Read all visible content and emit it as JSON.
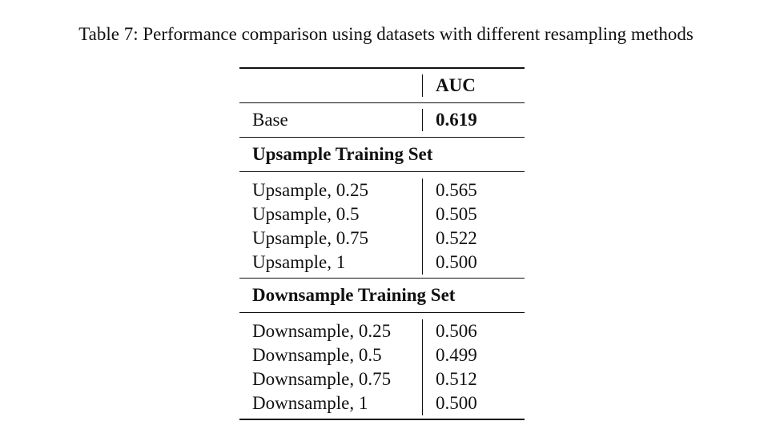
{
  "caption": "Table 7: Performance comparison using datasets with different resampling methods",
  "table": {
    "header": {
      "method": "",
      "metric": "AUC"
    },
    "base": {
      "label": "Base",
      "value": "0.619"
    },
    "sections": [
      {
        "title": "Upsample Training Set",
        "rows": [
          {
            "label": "Upsample, 0.25",
            "value": "0.565"
          },
          {
            "label": "Upsample, 0.5",
            "value": "0.505"
          },
          {
            "label": "Upsample, 0.75",
            "value": "0.522"
          },
          {
            "label": "Upsample, 1",
            "value": "0.500"
          }
        ]
      },
      {
        "title": "Downsample Training Set",
        "rows": [
          {
            "label": "Downsample, 0.25",
            "value": "0.506"
          },
          {
            "label": "Downsample, 0.5",
            "value": "0.499"
          },
          {
            "label": "Downsample, 0.75",
            "value": "0.512"
          },
          {
            "label": "Downsample, 1",
            "value": "0.500"
          }
        ]
      }
    ]
  }
}
